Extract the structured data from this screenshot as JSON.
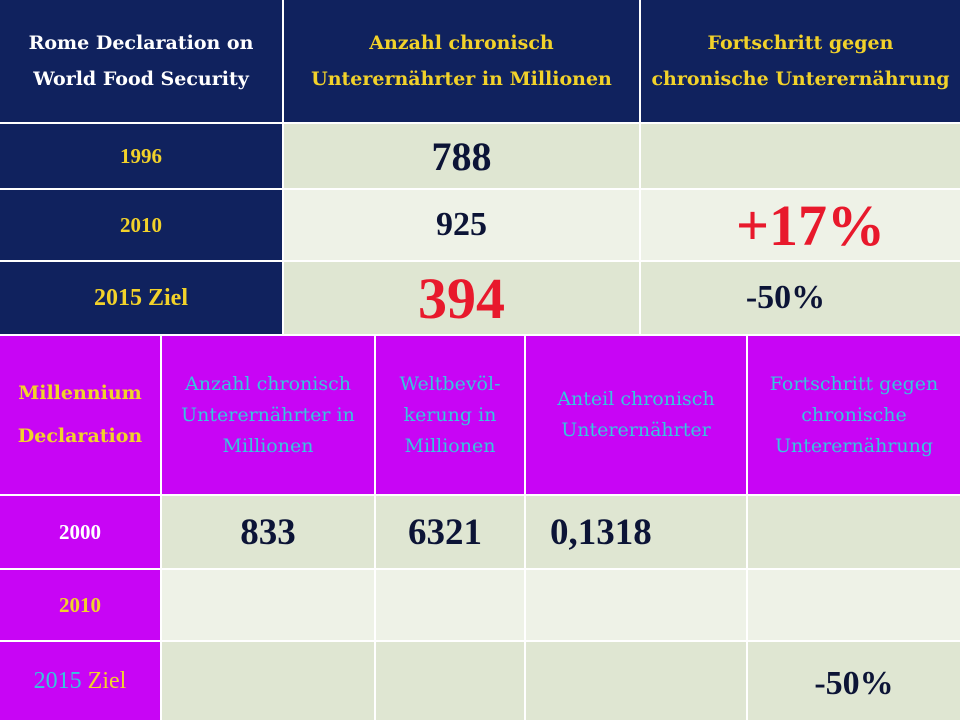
{
  "table1": {
    "headers": [
      "Rome Declaration on World Food Security",
      "Anzahl chronisch Unterernährter in Millionen",
      "Fortschritt gegen chronische Unterernährung"
    ],
    "rows": [
      {
        "label": "1996",
        "value": "788",
        "progress": ""
      },
      {
        "label": "2010",
        "value": "925",
        "progress": "+17%"
      },
      {
        "label": "2015 Ziel",
        "value": "394",
        "progress": "-50%"
      }
    ]
  },
  "table2": {
    "headers": [
      "Millennium Declaration",
      "Anzahl chronisch Unterernährter in Millionen",
      "Weltbevöl-kerung in Millionen",
      "Anteil chronisch Unterernährter",
      "Fortschritt gegen chronische Unterernährung"
    ],
    "rows": [
      {
        "label": "2000",
        "values": [
          "833",
          "6321",
          "0,1318",
          ""
        ]
      },
      {
        "label": "2010",
        "values": [
          "",
          "",
          "",
          ""
        ]
      },
      {
        "label_part1": "2015",
        "label_part2": "Ziel",
        "values": [
          "",
          "",
          "",
          "-50%"
        ]
      }
    ]
  },
  "colors": {
    "navy": "#10225e",
    "yellow": "#f2d22a",
    "purple": "#c805f5",
    "cyan": "#37c6dd",
    "red": "#e8192c",
    "cell_light": "#dfe6d2"
  }
}
